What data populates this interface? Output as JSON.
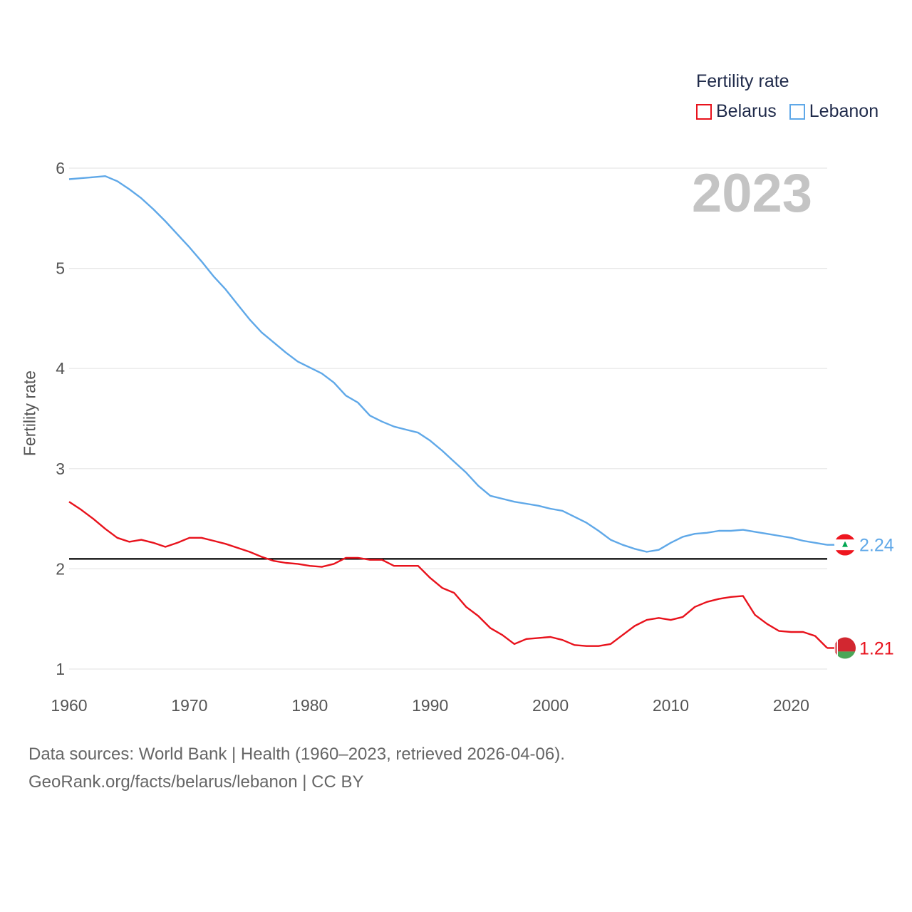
{
  "chart_data": {
    "type": "line",
    "legend_title": "Fertility rate",
    "ylabel": "Fertility rate",
    "xlabel": "",
    "year_label": "2023",
    "xlim": [
      1960,
      2023
    ],
    "ylim": [
      1,
      6
    ],
    "x_ticks": [
      "1960",
      "1970",
      "1980",
      "1990",
      "2000",
      "2010",
      "2020"
    ],
    "y_ticks": [
      "1",
      "2",
      "3",
      "4",
      "5",
      "6"
    ],
    "reference_line": 2.1,
    "series": [
      {
        "name": "Belarus",
        "color": "#e8121c",
        "end_label": "1.21",
        "flag": "belarus-flag",
        "x": [
          1960,
          1961,
          1962,
          1963,
          1964,
          1965,
          1966,
          1967,
          1968,
          1969,
          1970,
          1971,
          1972,
          1973,
          1974,
          1975,
          1976,
          1977,
          1978,
          1979,
          1980,
          1981,
          1982,
          1983,
          1984,
          1985,
          1986,
          1987,
          1988,
          1989,
          1990,
          1991,
          1992,
          1993,
          1994,
          1995,
          1996,
          1997,
          1998,
          1999,
          2000,
          2001,
          2002,
          2003,
          2004,
          2005,
          2006,
          2007,
          2008,
          2009,
          2010,
          2011,
          2012,
          2013,
          2014,
          2015,
          2016,
          2017,
          2018,
          2019,
          2020,
          2021,
          2022,
          2023
        ],
        "values": [
          2.67,
          2.59,
          2.5,
          2.4,
          2.31,
          2.27,
          2.29,
          2.26,
          2.22,
          2.26,
          2.31,
          2.31,
          2.28,
          2.25,
          2.21,
          2.17,
          2.12,
          2.08,
          2.06,
          2.05,
          2.03,
          2.02,
          2.05,
          2.11,
          2.11,
          2.09,
          2.09,
          2.03,
          2.03,
          2.03,
          1.91,
          1.81,
          1.76,
          1.62,
          1.53,
          1.41,
          1.34,
          1.25,
          1.3,
          1.31,
          1.32,
          1.29,
          1.24,
          1.23,
          1.23,
          1.25,
          1.34,
          1.43,
          1.49,
          1.51,
          1.49,
          1.52,
          1.62,
          1.67,
          1.7,
          1.72,
          1.73,
          1.54,
          1.45,
          1.38,
          1.37,
          1.37,
          1.33,
          1.21
        ]
      },
      {
        "name": "Lebanon",
        "color": "#5fa8e8",
        "end_label": "2.24",
        "flag": "lebanon-flag",
        "x": [
          1960,
          1961,
          1962,
          1963,
          1964,
          1965,
          1966,
          1967,
          1968,
          1969,
          1970,
          1971,
          1972,
          1973,
          1974,
          1975,
          1976,
          1977,
          1978,
          1979,
          1980,
          1981,
          1982,
          1983,
          1984,
          1985,
          1986,
          1987,
          1988,
          1989,
          1990,
          1991,
          1992,
          1993,
          1994,
          1995,
          1996,
          1997,
          1998,
          1999,
          2000,
          2001,
          2002,
          2003,
          2004,
          2005,
          2006,
          2007,
          2008,
          2009,
          2010,
          2011,
          2012,
          2013,
          2014,
          2015,
          2016,
          2017,
          2018,
          2019,
          2020,
          2021,
          2022,
          2023
        ],
        "values": [
          5.89,
          5.9,
          5.91,
          5.92,
          5.87,
          5.79,
          5.7,
          5.59,
          5.47,
          5.34,
          5.21,
          5.07,
          4.92,
          4.79,
          4.64,
          4.49,
          4.36,
          4.26,
          4.16,
          4.07,
          4.01,
          3.95,
          3.86,
          3.73,
          3.66,
          3.53,
          3.47,
          3.42,
          3.39,
          3.36,
          3.28,
          3.18,
          3.07,
          2.96,
          2.83,
          2.73,
          2.7,
          2.67,
          2.65,
          2.63,
          2.6,
          2.58,
          2.52,
          2.46,
          2.38,
          2.29,
          2.24,
          2.2,
          2.17,
          2.19,
          2.26,
          2.32,
          2.35,
          2.36,
          2.38,
          2.38,
          2.39,
          2.37,
          2.35,
          2.33,
          2.31,
          2.28,
          2.26,
          2.24
        ]
      }
    ]
  },
  "footer": {
    "line1": "Data sources: World Bank | Health (1960–2023, retrieved 2026-04-06).",
    "line2": "GeoRank.org/facts/belarus/lebanon | CC BY"
  }
}
